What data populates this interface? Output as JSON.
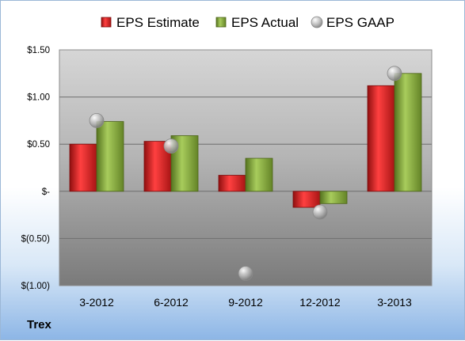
{
  "company_label": "Trex",
  "chart_data": {
    "type": "bar",
    "categories": [
      "3-2012",
      "6-2012",
      "9-2012",
      "12-2012",
      "3-2013"
    ],
    "series": [
      {
        "name": "EPS Estimate",
        "kind": "bar",
        "color": "#cc2222",
        "values": [
          0.5,
          0.53,
          0.17,
          -0.17,
          1.12
        ]
      },
      {
        "name": "EPS Actual",
        "kind": "bar",
        "color": "#7fa23a",
        "values": [
          0.74,
          0.59,
          0.35,
          -0.13,
          1.25
        ]
      },
      {
        "name": "EPS GAAP",
        "kind": "marker",
        "color": "#b8b8b8",
        "values": [
          0.75,
          0.48,
          -0.87,
          -0.22,
          1.25
        ]
      }
    ],
    "ylim": [
      -1.0,
      1.5
    ],
    "yticks": [
      {
        "value": 1.5,
        "label": "$1.50"
      },
      {
        "value": 1.0,
        "label": "$1.00"
      },
      {
        "value": 0.5,
        "label": "$0.50"
      },
      {
        "value": 0.0,
        "label": "$-"
      },
      {
        "value": -0.5,
        "label": "$(0.50)"
      },
      {
        "value": -1.0,
        "label": "$(1.00)"
      }
    ],
    "grid": true,
    "legend_position": "top"
  }
}
